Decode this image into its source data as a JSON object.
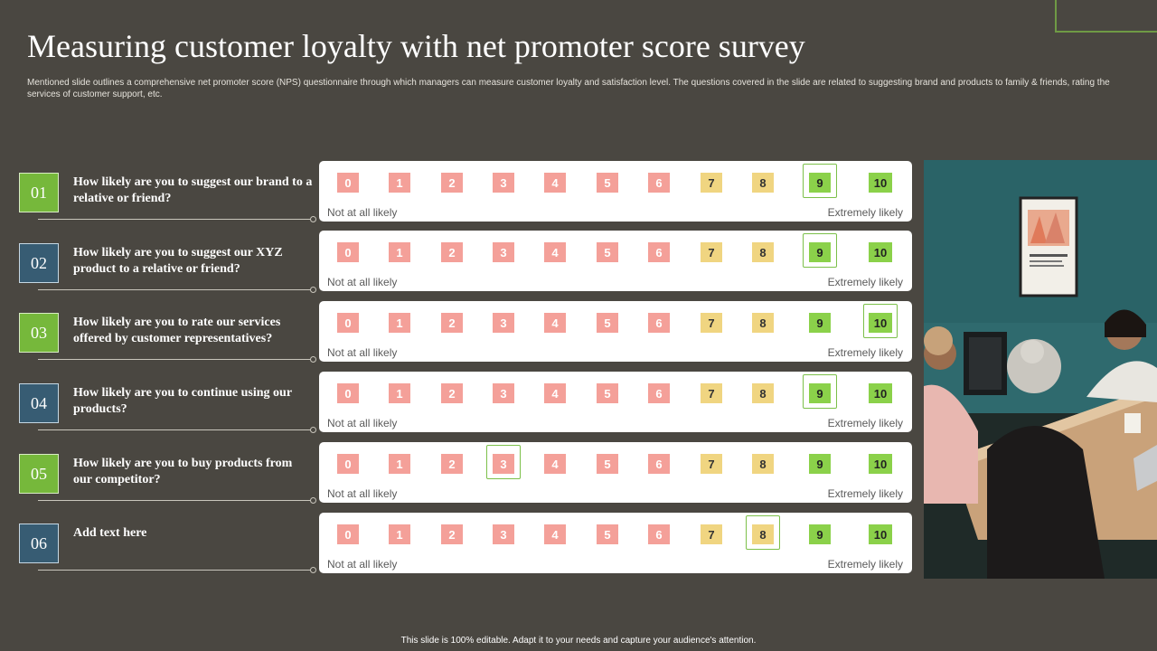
{
  "slide": {
    "title": "Measuring customer loyalty with net promoter score survey",
    "subtitle": "Mentioned slide outlines a comprehensive net promoter score (NPS) questionnaire through which managers can measure customer loyalty and satisfaction level. The questions covered in the slide are related to suggesting brand and products to family & friends, rating the services of customer support, etc.",
    "footer": "This slide is 100% editable. Adapt it to your needs and capture your audience's attention."
  },
  "scale": {
    "low_label": "Not at all likely",
    "high_label": "Extremely likely",
    "scores": [
      {
        "label": "0",
        "tone": "red"
      },
      {
        "label": "1",
        "tone": "red"
      },
      {
        "label": "2",
        "tone": "red"
      },
      {
        "label": "3",
        "tone": "red"
      },
      {
        "label": "4",
        "tone": "red"
      },
      {
        "label": "5",
        "tone": "red"
      },
      {
        "label": "6",
        "tone": "red"
      },
      {
        "label": "7",
        "tone": "yellow"
      },
      {
        "label": "8",
        "tone": "yellow"
      },
      {
        "label": "9",
        "tone": "green"
      },
      {
        "label": "10",
        "tone": "green"
      }
    ]
  },
  "questions": [
    {
      "number": "01",
      "text": "How likely are you to suggest our brand to a relative or friend?",
      "badge_color": "green",
      "selected": 9
    },
    {
      "number": "02",
      "text": "How likely are you to suggest our XYZ product to a relative or friend?",
      "badge_color": "blue",
      "selected": 9
    },
    {
      "number": "03",
      "text": "How likely are you to rate our services offered by customer representatives?",
      "badge_color": "green",
      "selected": 10
    },
    {
      "number": "04",
      "text": "How likely are you to continue using our products?",
      "badge_color": "blue",
      "selected": 9
    },
    {
      "number": "05",
      "text": "How likely are you to buy products from our competitor?",
      "badge_color": "green",
      "selected": 3
    },
    {
      "number": "06",
      "text": "Add text here",
      "badge_color": "blue",
      "selected": 8
    }
  ],
  "colors": {
    "background": "#4a4741",
    "accent_green": "#76b83b",
    "accent_blue": "#375c73",
    "detractor": "#f4a099",
    "passive": "#f0d581",
    "promoter": "#8bd14a"
  }
}
